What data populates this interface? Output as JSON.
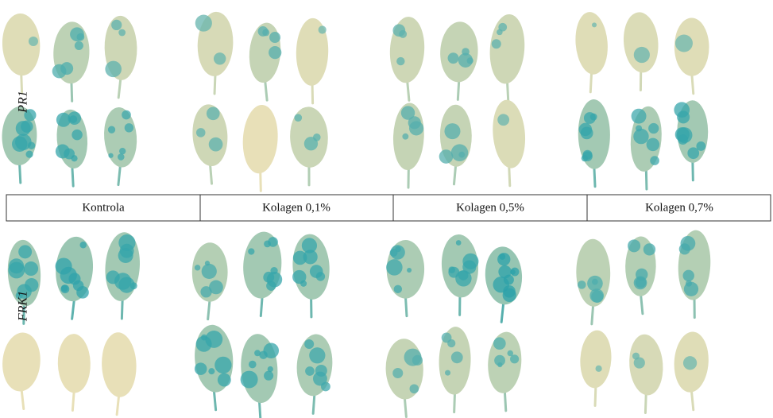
{
  "rows": {
    "top_label": "PR1",
    "bottom_label": "FRK1"
  },
  "table": {
    "columns": [
      "Kontrola",
      "Kolagen 0,1%",
      "Kolagen 0,5%",
      "Kolagen 0,7%"
    ]
  }
}
